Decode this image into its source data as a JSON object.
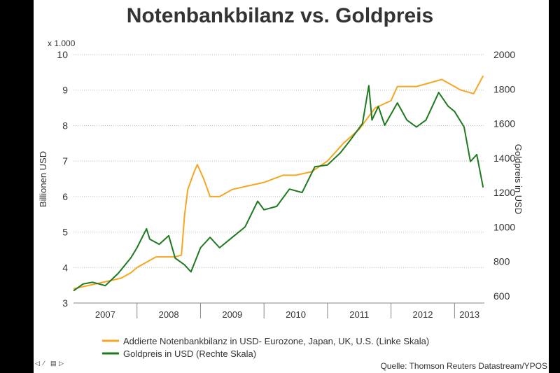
{
  "chart_data": {
    "type": "line",
    "title": "Notenbankbilanz vs. Goldpreis",
    "ylabel": "Billionen USD",
    "ylabel_right": "Goldpreis in USD",
    "y_multiplier_label": "x 1.000",
    "ylim": [
      3,
      10
    ],
    "ylim_right": [
      600,
      2000
    ],
    "yticks": [
      3,
      4,
      5,
      6,
      7,
      8,
      9,
      10
    ],
    "yticks_right": [
      600,
      800,
      1000,
      1200,
      1400,
      1600,
      1800,
      2000
    ],
    "xlim": [
      2007.0,
      2013.47
    ],
    "xticks": [
      "2007",
      "2008",
      "2009",
      "2010",
      "2011",
      "2012",
      "2013"
    ],
    "grid": true,
    "legend_position": "bottom-left",
    "source": "Quelle: Thomson Reuters Datastream/YPOS",
    "series": [
      {
        "name": "Addierte Notenbankbilanz in USD- Eurozone, Japan, UK, U.S. (Linke Skala)",
        "axis": "left",
        "color": "#f5a623",
        "x": [
          2007.0,
          2007.25,
          2007.5,
          2007.75,
          2007.9,
          2008.0,
          2008.3,
          2008.6,
          2008.7,
          2008.75,
          2008.8,
          2008.9,
          2008.95,
          2009.05,
          2009.15,
          2009.3,
          2009.5,
          2009.75,
          2010.0,
          2010.3,
          2010.5,
          2010.75,
          2011.0,
          2011.25,
          2011.5,
          2011.75,
          2012.0,
          2012.1,
          2012.4,
          2012.6,
          2012.8,
          2012.9,
          2013.1,
          2013.3,
          2013.45
        ],
        "y": [
          3.4,
          3.5,
          3.6,
          3.7,
          3.85,
          4.0,
          4.3,
          4.3,
          4.35,
          5.5,
          6.2,
          6.7,
          6.9,
          6.5,
          6.0,
          6.0,
          6.2,
          6.3,
          6.4,
          6.6,
          6.6,
          6.7,
          7.0,
          7.5,
          7.9,
          8.5,
          8.7,
          9.1,
          9.1,
          9.2,
          9.3,
          9.2,
          9.0,
          8.9,
          9.4
        ]
      },
      {
        "name": "Goldpreis in USD (Rechte Skala)",
        "axis": "right",
        "color": "#1e7a1e",
        "x": [
          2007.0,
          2007.15,
          2007.3,
          2007.5,
          2007.7,
          2007.9,
          2008.0,
          2008.15,
          2008.2,
          2008.35,
          2008.5,
          2008.6,
          2008.75,
          2008.85,
          2009.0,
          2009.15,
          2009.3,
          2009.5,
          2009.7,
          2009.9,
          2010.0,
          2010.2,
          2010.4,
          2010.6,
          2010.8,
          2011.0,
          2011.2,
          2011.35,
          2011.55,
          2011.65,
          2011.7,
          2011.8,
          2011.9,
          2012.1,
          2012.25,
          2012.4,
          2012.55,
          2012.75,
          2012.9,
          2013.0,
          2013.15,
          2013.25,
          2013.35,
          2013.45
        ],
        "y": [
          630,
          670,
          680,
          660,
          730,
          820,
          880,
          990,
          930,
          900,
          950,
          820,
          780,
          740,
          880,
          940,
          880,
          940,
          1000,
          1150,
          1100,
          1120,
          1220,
          1200,
          1350,
          1360,
          1430,
          1500,
          1600,
          1820,
          1620,
          1700,
          1590,
          1720,
          1620,
          1580,
          1620,
          1780,
          1700,
          1670,
          1580,
          1380,
          1420,
          1230
        ]
      }
    ]
  }
}
